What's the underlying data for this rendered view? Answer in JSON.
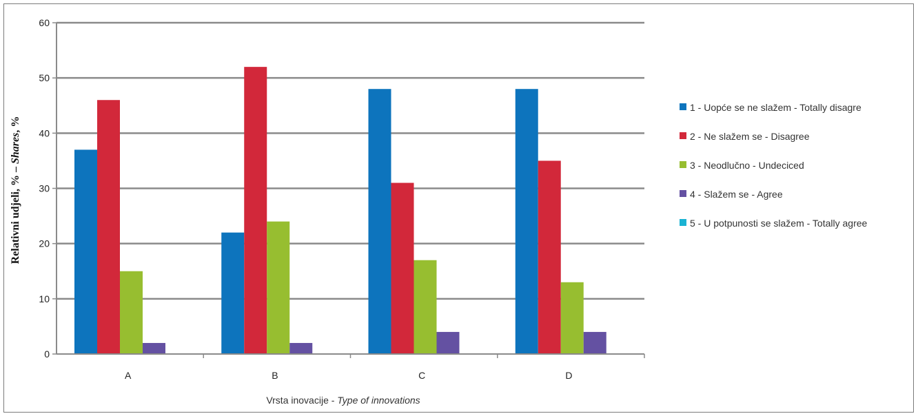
{
  "chart_data": {
    "type": "bar",
    "categories": [
      "A",
      "B",
      "C",
      "D"
    ],
    "series": [
      {
        "name": "1 - Uopće se ne slažem  - Totally disagre",
        "color": "#0d74bd",
        "values": [
          37,
          22,
          48,
          48
        ]
      },
      {
        "name": "2 - Ne slažem se  - Disagree",
        "color": "#d2283a",
        "values": [
          46,
          52,
          31,
          35
        ]
      },
      {
        "name": "3 - Neodlučno  - Undeciced",
        "color": "#97be30",
        "values": [
          15,
          24,
          17,
          13
        ]
      },
      {
        "name": "4 - Slažem se  - Agree",
        "color": "#6451a2",
        "values": [
          2,
          2,
          4,
          4
        ]
      },
      {
        "name": "5 - U potpunosti se slažem  - Totally agree",
        "color": "#1ab3d3",
        "values": [
          0,
          0,
          0,
          0
        ]
      }
    ],
    "ylim": [
      0,
      60
    ],
    "yticks": [
      0,
      10,
      20,
      30,
      40,
      50,
      60
    ],
    "grid": true,
    "legend_position": "right",
    "ylabel": {
      "main": "Relativni udjeli, % – ",
      "italic": "Shares",
      "suffix": ", %"
    },
    "xlabel": {
      "main": "Vrsta inovacije  - ",
      "italic": "Type of innovations"
    }
  }
}
